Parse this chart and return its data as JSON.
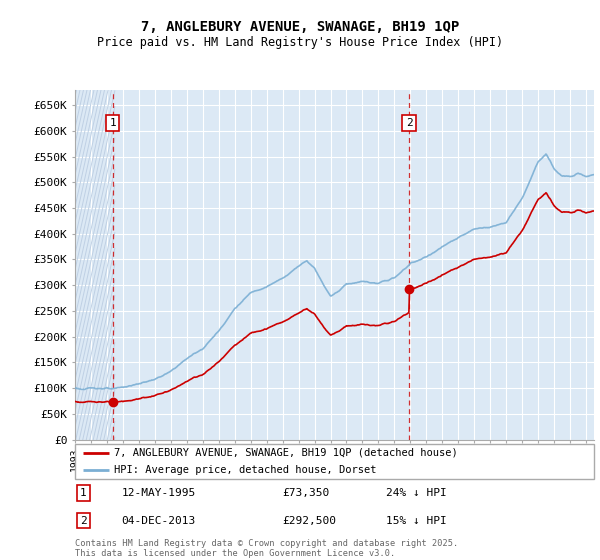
{
  "title": "7, ANGLEBURY AVENUE, SWANAGE, BH19 1QP",
  "subtitle": "Price paid vs. HM Land Registry's House Price Index (HPI)",
  "ylabel_ticks": [
    "£0",
    "£50K",
    "£100K",
    "£150K",
    "£200K",
    "£250K",
    "£300K",
    "£350K",
    "£400K",
    "£450K",
    "£500K",
    "£550K",
    "£600K",
    "£650K"
  ],
  "ytick_values": [
    0,
    50000,
    100000,
    150000,
    200000,
    250000,
    300000,
    350000,
    400000,
    450000,
    500000,
    550000,
    600000,
    650000
  ],
  "sale1_date": 1995.36,
  "sale1_price": 73350,
  "sale1_label": "1",
  "sale2_date": 2013.92,
  "sale2_price": 292500,
  "sale2_label": "2",
  "hpi_line_color": "#7bafd4",
  "price_line_color": "#cc0000",
  "sale_marker_color": "#cc0000",
  "bg_color": "#dce9f5",
  "hatch_stripe_color": "#bfd0e4",
  "grid_color": "#ffffff",
  "legend_label1": "7, ANGLEBURY AVENUE, SWANAGE, BH19 1QP (detached house)",
  "legend_label2": "HPI: Average price, detached house, Dorset",
  "footer": "Contains HM Land Registry data © Crown copyright and database right 2025.\nThis data is licensed under the Open Government Licence v3.0.",
  "xmin": 1993,
  "xmax": 2025.5,
  "ylim": [
    0,
    680000
  ]
}
